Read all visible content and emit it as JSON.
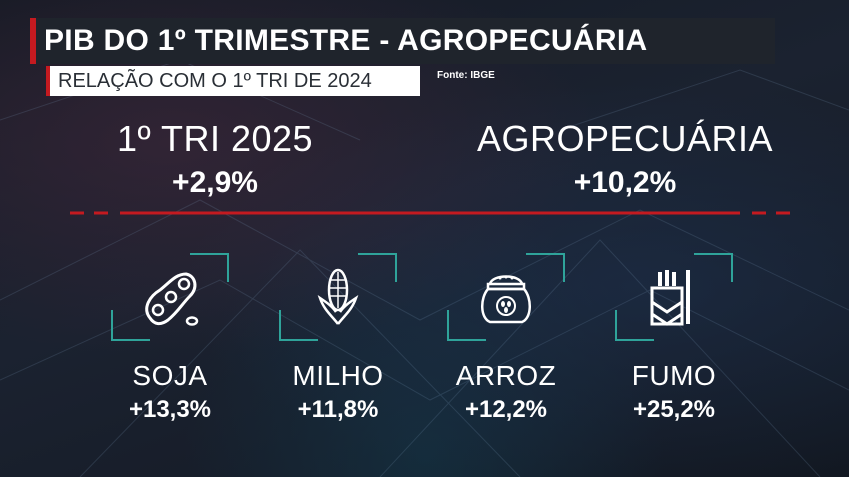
{
  "header": {
    "title": "PIB DO 1º TRIMESTRE - AGROPECUÁRIA",
    "subtitle": "RELAÇÃO COM O 1º TRI DE 2024",
    "source": "Fonte: IBGE"
  },
  "kpis": [
    {
      "label": "1º TRI 2025",
      "value": "+2,9%"
    },
    {
      "label": "AGROPECUÁRIA",
      "value": "+10,2%"
    }
  ],
  "items": [
    {
      "name": "SOJA",
      "value": "+13,3%",
      "icon": "soybean-icon"
    },
    {
      "name": "MILHO",
      "value": "+11,8%",
      "icon": "corn-icon"
    },
    {
      "name": "ARROZ",
      "value": "+12,2%",
      "icon": "rice-sack-icon"
    },
    {
      "name": "FUMO",
      "value": "+25,2%",
      "icon": "tobacco-icon"
    }
  ],
  "colors": {
    "accent": "#c41a20",
    "frame": "#2fa39a",
    "text": "#ffffff"
  }
}
